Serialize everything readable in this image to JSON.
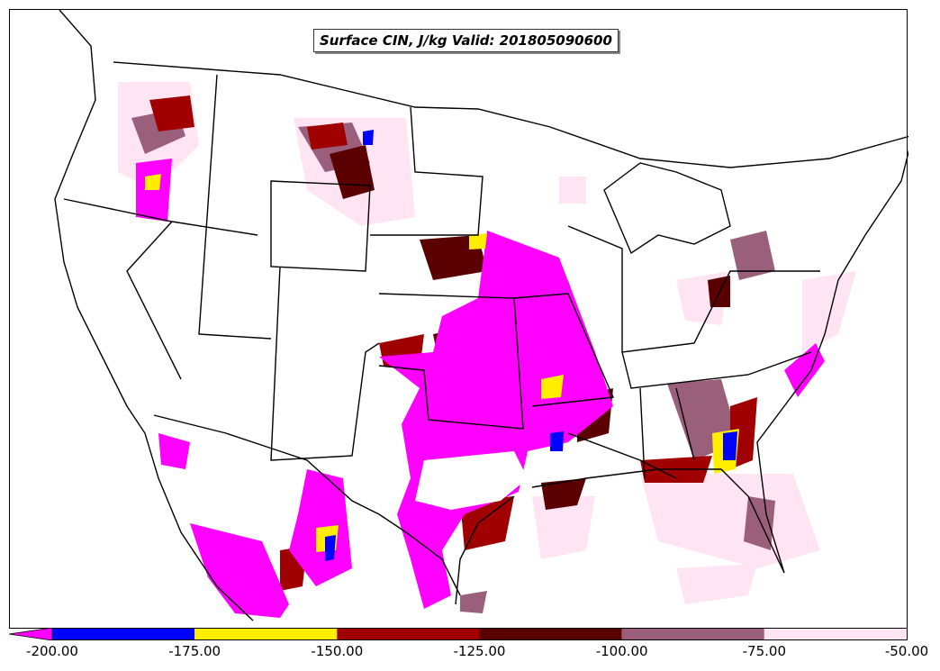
{
  "map": {
    "title": "Surface CIN, J/kg Valid: 201805090600",
    "field": "Surface CIN",
    "units": "J/kg",
    "valid_time": "201805090600",
    "region": "Continental United States, northern Mexico, southern Canada"
  },
  "colorbar": {
    "tick_labels": [
      "-200.00",
      "-175.00",
      "-150.00",
      "-125.00",
      "-100.00",
      "-75.00",
      "-50.00"
    ],
    "bins": [
      {
        "range": [
          -200,
          -175
        ],
        "color": "#0000ff"
      },
      {
        "range": [
          -175,
          -150
        ],
        "color": "#ffee00"
      },
      {
        "range": [
          -150,
          -125
        ],
        "color": "#a00000"
      },
      {
        "range": [
          -125,
          -100
        ],
        "color": "#5a0000"
      },
      {
        "range": [
          -100,
          -75
        ],
        "color": "#9a5f7a"
      },
      {
        "range": [
          -75,
          -50
        ],
        "color": "#ffe4f4"
      }
    ],
    "under_color": "#ff00ff",
    "extend": "min"
  }
}
